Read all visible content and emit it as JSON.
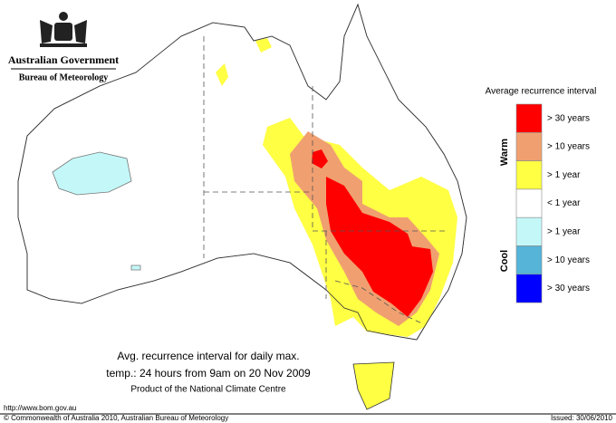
{
  "header": {
    "title": "Australian Government",
    "subtitle": "Bureau of Meteorology"
  },
  "legend": {
    "title": "Average recurrence interval",
    "groups": [
      "Warm",
      "Cool"
    ],
    "items": [
      {
        "label": "> 30 years",
        "color": "#ff0000"
      },
      {
        "label": "> 10 years",
        "color": "#f0a070"
      },
      {
        "label": "> 1 year",
        "color": "#ffff44"
      },
      {
        "label": "< 1 year",
        "color": "#ffffff"
      },
      {
        "label": "> 1 year",
        "color": "#c4f8f8"
      },
      {
        "label": "> 10 years",
        "color": "#55b4d8"
      },
      {
        "label": "> 30 years",
        "color": "#0000ff"
      }
    ]
  },
  "caption": {
    "line1": "Avg. recurrence interval for daily max.",
    "line2": "temp.: 24 hours from 9am on 20 Nov 2009",
    "line3": "Product of the National Climate Centre"
  },
  "footer": {
    "url": "http://www.bom.gov.au",
    "copyright": "© Commonwealth of Australia 2010, Australian Bureau of Meteorology",
    "issued": "Issued: 30/06/2010"
  }
}
